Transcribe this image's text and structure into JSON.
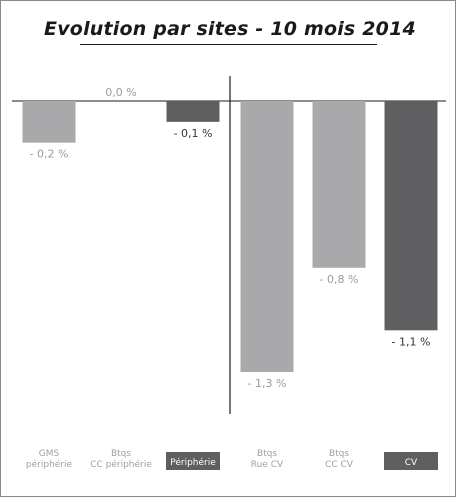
{
  "chart_data": {
    "type": "bar",
    "title": "Evolution par sites - 10 mois 2014",
    "categories": [
      [
        "GMS",
        "périphérie"
      ],
      [
        "Btqs",
        "CC périphérie"
      ],
      [
        "Périphérie"
      ],
      [
        "Btqs",
        "Rue CV"
      ],
      [
        "Btqs",
        "CC CV"
      ],
      [
        "CV"
      ]
    ],
    "values": [
      -0.2,
      0.0,
      -0.1,
      -1.3,
      -0.8,
      -1.1
    ],
    "value_labels": [
      "- 0,2 %",
      "0,0 %",
      "- 0,1 %",
      "- 1,3 %",
      "- 0,8 %",
      "- 1,1 %"
    ],
    "highlight": [
      false,
      false,
      true,
      false,
      false,
      true
    ],
    "ylim": [
      -1.3,
      0.0
    ],
    "grid": false,
    "legend": "none",
    "colors": {
      "bar": "#a9a9ab",
      "bar_highlight": "#5f5f61",
      "label": "#9b9b9d",
      "label_highlight": "#333333",
      "axis": "#1a1a1a",
      "category_text": "#a0a0a2",
      "category_box": "#5f5f61",
      "category_box_text": "#ffffff"
    }
  }
}
